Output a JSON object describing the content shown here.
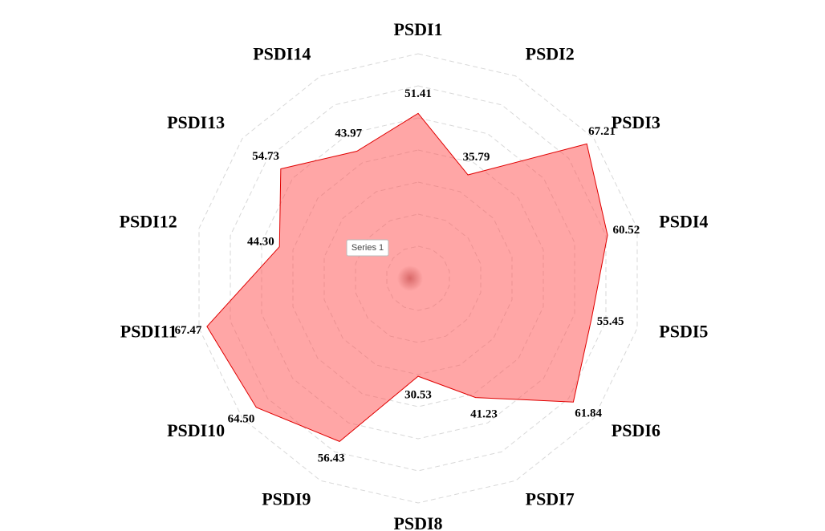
{
  "chart_data": {
    "type": "radar",
    "categories": [
      "PSDI1",
      "PSDI2",
      "PSDI3",
      "PSDI4",
      "PSDI5",
      "PSDI6",
      "PSDI7",
      "PSDI8",
      "PSDI9",
      "PSDI10",
      "PSDI11",
      "PSDI12",
      "PSDI13",
      "PSDI14"
    ],
    "series": [
      {
        "name": "Series 1",
        "color": "#ff4d4d",
        "values": [
          51.41,
          35.79,
          67.21,
          60.52,
          55.45,
          61.84,
          41.23,
          30.53,
          56.43,
          64.5,
          67.47,
          44.3,
          54.73,
          43.97
        ],
        "value_labels": [
          "51.41",
          "35.79",
          "67.21",
          "60.52",
          "55.45",
          "61.84",
          "41.23",
          "30.53",
          "56.43",
          "64.50",
          "67.47",
          "44.30",
          "54.73",
          "43.97"
        ]
      }
    ],
    "ylim": [
      0,
      70
    ],
    "yticks": [
      10,
      20,
      30,
      40,
      50,
      60,
      70
    ],
    "grid": true
  }
}
